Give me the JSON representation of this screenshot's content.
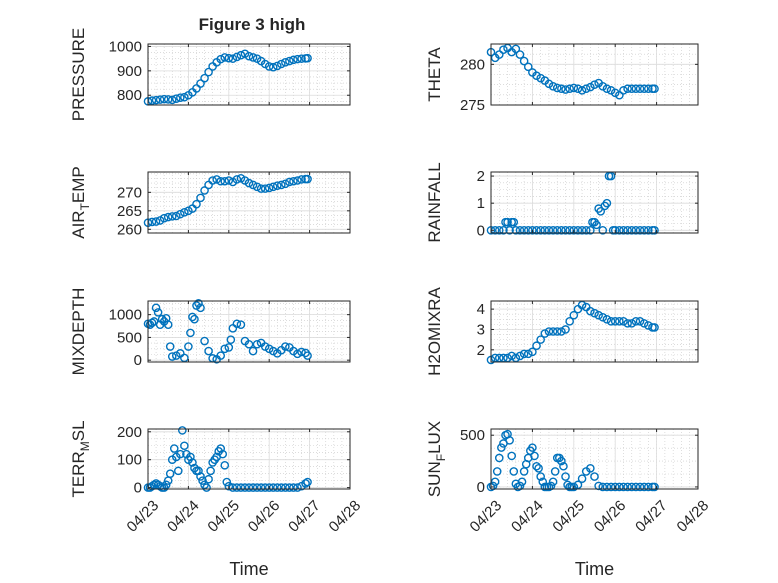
{
  "figure": {
    "title": "Figure 3 high"
  },
  "colors": {
    "marker": "#0072BD",
    "axes": "#262626",
    "grid": "#c8c8c8",
    "background": "#ffffff"
  },
  "chart_data": [
    {
      "id": "pressure",
      "type": "scatter",
      "ylabel": "PRESSURE",
      "ylabel_sub": "",
      "xlabel": "",
      "ylim": [
        760,
        1010
      ],
      "yticks": [
        800,
        900,
        1000
      ],
      "xlim": [
        0,
        5
      ],
      "xticks": [
        0,
        1,
        2,
        3,
        4,
        5
      ],
      "xticklabels": [
        "04/23",
        "04/24",
        "04/25",
        "04/26",
        "04/27",
        "04/28"
      ],
      "show_xticklabels": false,
      "series": [
        {
          "name": "PRESSURE",
          "x": [
            0.0,
            0.1,
            0.2,
            0.3,
            0.4,
            0.5,
            0.6,
            0.7,
            0.8,
            0.9,
            1.0,
            1.1,
            1.2,
            1.3,
            1.4,
            1.5,
            1.6,
            1.7,
            1.8,
            1.9,
            2.0,
            2.1,
            2.2,
            2.3,
            2.4,
            2.5,
            2.6,
            2.7,
            2.8,
            2.9,
            3.0,
            3.1,
            3.2,
            3.3,
            3.4,
            3.5,
            3.6,
            3.7,
            3.8,
            3.9,
            3.95
          ],
          "y": [
            775,
            778,
            780,
            782,
            784,
            783,
            781,
            786,
            790,
            792,
            800,
            812,
            828,
            848,
            870,
            895,
            918,
            935,
            948,
            955,
            952,
            950,
            957,
            964,
            970,
            960,
            955,
            950,
            940,
            928,
            918,
            915,
            920,
            928,
            935,
            940,
            945,
            948,
            950,
            951,
            952
          ]
        }
      ]
    },
    {
      "id": "theta",
      "type": "scatter",
      "ylabel": "THETA",
      "ylabel_sub": "",
      "xlabel": "",
      "ylim": [
        275,
        282.5
      ],
      "yticks": [
        275,
        280
      ],
      "xlim": [
        0,
        5
      ],
      "xticks": [
        0,
        1,
        2,
        3,
        4,
        5
      ],
      "xticklabels": [
        "04/23",
        "04/24",
        "04/25",
        "04/26",
        "04/27",
        "04/28"
      ],
      "show_xticklabels": false,
      "series": [
        {
          "name": "THETA",
          "x": [
            0.0,
            0.1,
            0.2,
            0.3,
            0.4,
            0.5,
            0.6,
            0.7,
            0.8,
            0.9,
            1.0,
            1.1,
            1.2,
            1.3,
            1.4,
            1.5,
            1.6,
            1.7,
            1.8,
            1.9,
            2.0,
            2.1,
            2.2,
            2.3,
            2.4,
            2.5,
            2.6,
            2.7,
            2.8,
            2.9,
            3.0,
            3.1,
            3.2,
            3.3,
            3.4,
            3.5,
            3.6,
            3.7,
            3.8,
            3.9,
            3.95
          ],
          "y": [
            281.5,
            280.8,
            281.2,
            281.8,
            282.0,
            281.5,
            281.9,
            281.2,
            280.4,
            279.7,
            279.0,
            278.6,
            278.3,
            278.0,
            277.6,
            277.3,
            277.1,
            277.0,
            276.9,
            277.0,
            277.1,
            277.0,
            276.8,
            277.0,
            277.2,
            277.5,
            277.7,
            277.3,
            277.0,
            276.8,
            276.5,
            276.2,
            276.8,
            277.0,
            277.0,
            277.0,
            277.0,
            277.0,
            277.0,
            277.0,
            277.0
          ]
        }
      ]
    },
    {
      "id": "air_temp",
      "type": "scatter",
      "ylabel": "AIR",
      "ylabel_sub": "T",
      "ylabel_tail": "EMP",
      "xlabel": "",
      "ylim": [
        259,
        275.5
      ],
      "yticks": [
        260,
        265,
        270
      ],
      "xlim": [
        0,
        5
      ],
      "xticks": [
        0,
        1,
        2,
        3,
        4,
        5
      ],
      "xticklabels": [
        "04/23",
        "04/24",
        "04/25",
        "04/26",
        "04/27",
        "04/28"
      ],
      "show_xticklabels": false,
      "series": [
        {
          "name": "AIR_TEMP",
          "x": [
            0.0,
            0.1,
            0.2,
            0.3,
            0.4,
            0.5,
            0.6,
            0.7,
            0.8,
            0.9,
            1.0,
            1.1,
            1.2,
            1.3,
            1.4,
            1.5,
            1.6,
            1.7,
            1.8,
            1.9,
            2.0,
            2.1,
            2.2,
            2.3,
            2.4,
            2.5,
            2.6,
            2.7,
            2.8,
            2.9,
            3.0,
            3.1,
            3.2,
            3.3,
            3.4,
            3.5,
            3.6,
            3.7,
            3.8,
            3.9,
            3.95
          ],
          "y": [
            261.8,
            262.0,
            262.1,
            262.4,
            263.0,
            263.3,
            263.5,
            263.6,
            264.1,
            264.6,
            265.0,
            265.6,
            266.8,
            268.5,
            270.5,
            272.0,
            273.2,
            273.5,
            273.0,
            273.0,
            273.2,
            272.8,
            273.5,
            273.8,
            273.2,
            272.5,
            272.0,
            271.5,
            271.0,
            271.0,
            271.2,
            271.5,
            271.8,
            272.0,
            272.3,
            272.8,
            273.0,
            273.2,
            273.5,
            273.6,
            273.6
          ]
        }
      ]
    },
    {
      "id": "rainfall",
      "type": "scatter",
      "ylabel": "RAINFALL",
      "ylabel_sub": "",
      "xlabel": "",
      "ylim": [
        -0.1,
        2.15
      ],
      "yticks": [
        0,
        1,
        2
      ],
      "xlim": [
        0,
        5
      ],
      "xticks": [
        0,
        1,
        2,
        3,
        4,
        5
      ],
      "xticklabels": [
        "04/23",
        "04/24",
        "04/25",
        "04/26",
        "04/27",
        "04/28"
      ],
      "show_xticklabels": false,
      "series": [
        {
          "name": "RAINFALL",
          "x": [
            0.0,
            0.1,
            0.2,
            0.3,
            0.35,
            0.4,
            0.45,
            0.5,
            0.55,
            0.6,
            0.7,
            0.8,
            0.9,
            1.0,
            1.1,
            1.2,
            1.3,
            1.4,
            1.5,
            1.6,
            1.7,
            1.8,
            1.9,
            2.0,
            2.1,
            2.2,
            2.3,
            2.4,
            2.45,
            2.5,
            2.55,
            2.6,
            2.65,
            2.7,
            2.75,
            2.8,
            2.85,
            2.9,
            2.95,
            3.0,
            3.1,
            3.2,
            3.3,
            3.4,
            3.5,
            3.6,
            3.7,
            3.8,
            3.9,
            3.95
          ],
          "y": [
            0,
            0,
            0,
            0,
            0.3,
            0.3,
            0,
            0.3,
            0.3,
            0,
            0,
            0,
            0,
            0,
            0,
            0,
            0,
            0,
            0,
            0,
            0,
            0,
            0,
            0,
            0,
            0,
            0,
            0,
            0.3,
            0.3,
            0.2,
            0.8,
            0.7,
            0,
            0.9,
            1.0,
            2.0,
            2.0,
            0,
            0,
            0,
            0,
            0,
            0,
            0,
            0,
            0,
            0,
            0,
            0
          ]
        }
      ]
    },
    {
      "id": "mixdepth",
      "type": "scatter",
      "ylabel": "MIXDEPTH",
      "ylabel_sub": "",
      "xlabel": "",
      "ylim": [
        -40,
        1300
      ],
      "yticks": [
        0,
        500,
        1000
      ],
      "xlim": [
        0,
        5
      ],
      "xticks": [
        0,
        1,
        2,
        3,
        4,
        5
      ],
      "xticklabels": [
        "04/23",
        "04/24",
        "04/25",
        "04/26",
        "04/27",
        "04/28"
      ],
      "show_xticklabels": false,
      "series": [
        {
          "name": "MIXDEPTH",
          "x": [
            0.0,
            0.05,
            0.1,
            0.15,
            0.2,
            0.25,
            0.3,
            0.35,
            0.4,
            0.45,
            0.5,
            0.55,
            0.6,
            0.7,
            0.8,
            0.9,
            1.0,
            1.05,
            1.1,
            1.15,
            1.2,
            1.25,
            1.3,
            1.4,
            1.5,
            1.6,
            1.7,
            1.8,
            1.9,
            2.0,
            2.05,
            2.1,
            2.2,
            2.3,
            2.4,
            2.5,
            2.6,
            2.7,
            2.8,
            2.9,
            3.0,
            3.1,
            3.2,
            3.3,
            3.4,
            3.5,
            3.6,
            3.7,
            3.8,
            3.9,
            3.95
          ],
          "y": [
            800,
            780,
            820,
            850,
            1150,
            1050,
            780,
            900,
            850,
            920,
            780,
            300,
            80,
            100,
            150,
            50,
            300,
            600,
            950,
            900,
            1200,
            1250,
            1150,
            420,
            200,
            40,
            20,
            100,
            250,
            280,
            450,
            700,
            800,
            780,
            420,
            350,
            200,
            350,
            380,
            300,
            250,
            200,
            150,
            220,
            300,
            280,
            200,
            140,
            180,
            160,
            100
          ]
        }
      ]
    },
    {
      "id": "h2omixra",
      "type": "scatter",
      "ylabel": "H2OMIXRA",
      "ylabel_sub": "",
      "xlabel": "",
      "ylim": [
        1.4,
        4.4
      ],
      "yticks": [
        2,
        3,
        4
      ],
      "xlim": [
        0,
        5
      ],
      "xticks": [
        0,
        1,
        2,
        3,
        4,
        5
      ],
      "xticklabels": [
        "04/23",
        "04/24",
        "04/25",
        "04/26",
        "04/27",
        "04/28"
      ],
      "show_xticklabels": false,
      "series": [
        {
          "name": "H2OMIXRA",
          "x": [
            0.0,
            0.1,
            0.2,
            0.3,
            0.4,
            0.5,
            0.6,
            0.7,
            0.8,
            0.9,
            1.0,
            1.1,
            1.2,
            1.3,
            1.4,
            1.5,
            1.6,
            1.7,
            1.8,
            1.9,
            2.0,
            2.1,
            2.2,
            2.3,
            2.4,
            2.5,
            2.6,
            2.7,
            2.8,
            2.9,
            3.0,
            3.1,
            3.2,
            3.3,
            3.4,
            3.5,
            3.6,
            3.7,
            3.8,
            3.9,
            3.95
          ],
          "y": [
            1.5,
            1.6,
            1.6,
            1.6,
            1.6,
            1.7,
            1.6,
            1.7,
            1.8,
            1.8,
            1.9,
            2.2,
            2.5,
            2.8,
            2.9,
            2.9,
            2.9,
            2.9,
            3.0,
            3.4,
            3.7,
            4.0,
            4.2,
            4.1,
            3.9,
            3.8,
            3.7,
            3.6,
            3.5,
            3.4,
            3.4,
            3.4,
            3.4,
            3.3,
            3.3,
            3.4,
            3.4,
            3.3,
            3.2,
            3.1,
            3.1
          ]
        }
      ]
    },
    {
      "id": "terr_msl",
      "type": "scatter",
      "ylabel": "TERR",
      "ylabel_sub": "M",
      "ylabel_tail": "SL",
      "xlabel": "Time",
      "ylim": [
        -5,
        210
      ],
      "yticks": [
        0,
        100,
        200
      ],
      "xlim": [
        0,
        5
      ],
      "xticks": [
        0,
        1,
        2,
        3,
        4,
        5
      ],
      "xticklabels": [
        "04/23",
        "04/24",
        "04/25",
        "04/26",
        "04/27",
        "04/28"
      ],
      "show_xticklabels": true,
      "series": [
        {
          "name": "TERR_MSL",
          "x": [
            0.0,
            0.05,
            0.1,
            0.15,
            0.2,
            0.25,
            0.3,
            0.35,
            0.4,
            0.45,
            0.5,
            0.55,
            0.6,
            0.65,
            0.7,
            0.75,
            0.8,
            0.85,
            0.9,
            0.95,
            1.0,
            1.05,
            1.1,
            1.15,
            1.2,
            1.25,
            1.3,
            1.35,
            1.4,
            1.45,
            1.5,
            1.55,
            1.6,
            1.65,
            1.7,
            1.75,
            1.8,
            1.85,
            1.9,
            1.95,
            2.0,
            2.1,
            2.2,
            2.3,
            2.4,
            2.5,
            2.6,
            2.7,
            2.8,
            2.9,
            3.0,
            3.1,
            3.2,
            3.3,
            3.4,
            3.5,
            3.6,
            3.7,
            3.8,
            3.9,
            3.95
          ],
          "y": [
            0,
            0,
            5,
            10,
            15,
            10,
            5,
            0,
            0,
            10,
            25,
            50,
            100,
            140,
            110,
            60,
            120,
            205,
            150,
            120,
            100,
            110,
            90,
            70,
            60,
            60,
            40,
            25,
            10,
            0,
            30,
            60,
            90,
            100,
            110,
            130,
            140,
            120,
            80,
            20,
            5,
            0,
            0,
            0,
            0,
            0,
            0,
            0,
            0,
            0,
            0,
            0,
            0,
            0,
            0,
            0,
            0,
            0,
            5,
            15,
            20
          ]
        }
      ]
    },
    {
      "id": "sun_flux",
      "type": "scatter",
      "ylabel": "SUN",
      "ylabel_sub": "F",
      "ylabel_tail": "LUX",
      "xlabel": "Time",
      "ylim": [
        -20,
        560
      ],
      "yticks": [
        0,
        500
      ],
      "xlim": [
        0,
        5
      ],
      "xticks": [
        0,
        1,
        2,
        3,
        4,
        5
      ],
      "xticklabels": [
        "04/23",
        "04/24",
        "04/25",
        "04/26",
        "04/27",
        "04/28"
      ],
      "show_xticklabels": true,
      "series": [
        {
          "name": "SUN_FLUX",
          "x": [
            0.0,
            0.05,
            0.1,
            0.15,
            0.2,
            0.25,
            0.3,
            0.35,
            0.4,
            0.45,
            0.5,
            0.55,
            0.6,
            0.65,
            0.7,
            0.75,
            0.8,
            0.85,
            0.9,
            0.95,
            1.0,
            1.05,
            1.1,
            1.15,
            1.2,
            1.25,
            1.3,
            1.35,
            1.4,
            1.45,
            1.5,
            1.55,
            1.6,
            1.65,
            1.7,
            1.75,
            1.8,
            1.85,
            1.9,
            1.95,
            2.0,
            2.1,
            2.2,
            2.3,
            2.4,
            2.5,
            2.6,
            2.7,
            2.8,
            2.9,
            3.0,
            3.1,
            3.2,
            3.3,
            3.4,
            3.5,
            3.6,
            3.7,
            3.8,
            3.9,
            3.95
          ],
          "y": [
            0,
            10,
            50,
            150,
            280,
            380,
            420,
            500,
            510,
            450,
            300,
            150,
            30,
            0,
            10,
            50,
            150,
            220,
            280,
            350,
            380,
            300,
            200,
            180,
            100,
            50,
            0,
            0,
            0,
            10,
            50,
            150,
            280,
            280,
            250,
            200,
            100,
            20,
            0,
            0,
            0,
            20,
            80,
            150,
            180,
            100,
            10,
            0,
            0,
            0,
            0,
            0,
            0,
            0,
            0,
            0,
            0,
            0,
            0,
            0,
            0
          ]
        }
      ]
    }
  ]
}
